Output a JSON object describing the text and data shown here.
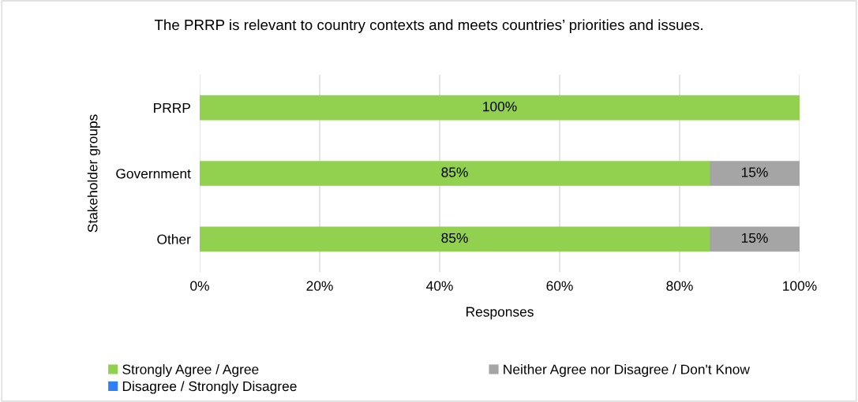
{
  "chart_data": {
    "type": "bar",
    "orientation": "horizontal",
    "stacked": true,
    "title": "The PRRP is relevant to country contexts and meets countries’ priorities and issues.",
    "xlabel": "Responses",
    "ylabel": "Stakeholder groups",
    "categories": [
      "PRRP",
      "Government",
      "Other"
    ],
    "series": [
      {
        "name": "Strongly Agree / Agree",
        "color": "#92d050",
        "values": [
          100,
          85,
          85
        ],
        "value_labels": [
          "100%",
          "85%",
          "85%"
        ]
      },
      {
        "name": "Neither Agree nor Disagree / Don't Know",
        "color": "#a5a5a5",
        "values": [
          0,
          15,
          15
        ],
        "value_labels": [
          null,
          "15%",
          "15%"
        ]
      },
      {
        "name": "Disagree / Strongly Disagree",
        "color": "#2f7ff7",
        "values": [
          0,
          0,
          0
        ],
        "value_labels": [
          null,
          null,
          null
        ]
      }
    ],
    "xlim": [
      0,
      100
    ],
    "xticks": [
      {
        "value": 0,
        "label": "0%"
      },
      {
        "value": 20,
        "label": "20%"
      },
      {
        "value": 40,
        "label": "40%"
      },
      {
        "value": 60,
        "label": "60%"
      },
      {
        "value": 80,
        "label": "80%"
      },
      {
        "value": 100,
        "label": "100%"
      }
    ],
    "grid": "x",
    "legend": "bottom"
  }
}
